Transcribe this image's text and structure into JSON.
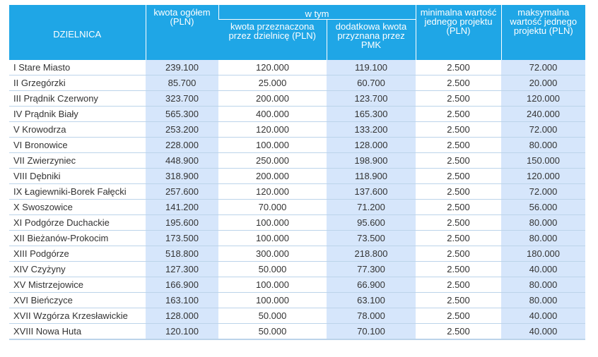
{
  "headers": {
    "district": "DZIELNICA",
    "total": "kwota ogółem (PLN)",
    "group": "w tym",
    "by_district": "kwota przeznaczona przez dzielnicę (PLN)",
    "additional": "dodatkowa kwota przyznana przez PMK",
    "min": "minimalna wartość jednego projektu (PLN)",
    "max": "maksymalna wartość jednego projektu (PLN)"
  },
  "rows": [
    {
      "name": "I Stare Miasto",
      "total": "239.100",
      "district": "120.000",
      "additional": "119.100",
      "min": "2.500",
      "max": "72.000"
    },
    {
      "name": "II Grzegórzki",
      "total": "85.700",
      "district": "25.000",
      "additional": "60.700",
      "min": "2.500",
      "max": "20.000"
    },
    {
      "name": "III Prądnik Czerwony",
      "total": "323.700",
      "district": "200.000",
      "additional": "123.700",
      "min": "2.500",
      "max": "120.000"
    },
    {
      "name": "IV Prądnik Biały",
      "total": "565.300",
      "district": "400.000",
      "additional": "165.300",
      "min": "2.500",
      "max": "240.000"
    },
    {
      "name": "V Krowodrza",
      "total": "253.200",
      "district": "120.000",
      "additional": "133.200",
      "min": "2.500",
      "max": "72.000"
    },
    {
      "name": "VI Bronowice",
      "total": "228.000",
      "district": "100.000",
      "additional": "128.000",
      "min": "2.500",
      "max": "80.000"
    },
    {
      "name": "VII Zwierzyniec",
      "total": "448.900",
      "district": "250.000",
      "additional": "198.900",
      "min": "2.500",
      "max": "150.000"
    },
    {
      "name": "VIII Dębniki",
      "total": "318.900",
      "district": "200.000",
      "additional": "118.900",
      "min": "2.500",
      "max": "120.000"
    },
    {
      "name": "IX Łagiewniki-Borek Fałęcki",
      "total": "257.600",
      "district": "120.000",
      "additional": "137.600",
      "min": "2.500",
      "max": "72.000"
    },
    {
      "name": "X Swoszowice",
      "total": "141.200",
      "district": "70.000",
      "additional": "71.200",
      "min": "2.500",
      "max": "56.000"
    },
    {
      "name": "XI Podgórze Duchackie",
      "total": "195.600",
      "district": "100.000",
      "additional": "95.600",
      "min": "2.500",
      "max": "80.000"
    },
    {
      "name": "XII Bieżanów-Prokocim",
      "total": "173.500",
      "district": "100.000",
      "additional": "73.500",
      "min": "2.500",
      "max": "80.000"
    },
    {
      "name": "XIII Podgórze",
      "total": "518.800",
      "district": "300.000",
      "additional": "218.800",
      "min": "2.500",
      "max": "180.000"
    },
    {
      "name": "XIV Czyżyny",
      "total": "127.300",
      "district": "50.000",
      "additional": "77.300",
      "min": "2.500",
      "max": "40.000"
    },
    {
      "name": "XV Mistrzejowice",
      "total": "166.900",
      "district": "100.000",
      "additional": "66.900",
      "min": "2.500",
      "max": "80.000"
    },
    {
      "name": "XVI Bieńczyce",
      "total": "163.100",
      "district": "100.000",
      "additional": "63.100",
      "min": "2.500",
      "max": "80.000"
    },
    {
      "name": "XVII Wzgórza Krzesławickie",
      "total": "128.000",
      "district": "50.000",
      "additional": "78.000",
      "min": "2.500",
      "max": "40.000"
    },
    {
      "name": "XVIII Nowa Huta",
      "total": "120.100",
      "district": "50.000",
      "additional": "70.100",
      "min": "2.500",
      "max": "40.000"
    }
  ],
  "colors": {
    "header_bg": "#1fa6e6",
    "shaded_column_bg": "#d6e6fb",
    "row_border": "#bcd4ea"
  }
}
